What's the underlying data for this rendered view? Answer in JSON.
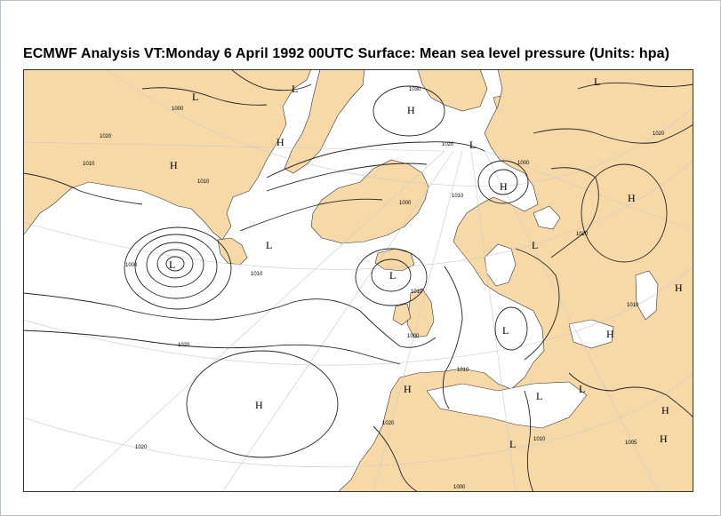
{
  "title": "ECMWF  Analysis VT:Monday 6 April 1992 00UTC Surface: Mean sea level pressure (Units: hpa)",
  "colors": {
    "land": "#f7d9a8",
    "sea": "#ffffff",
    "isobar": "#222222",
    "graticule": "#c8c8c8",
    "frame": "#b9bfd0",
    "tick_label": "#d8d060"
  },
  "pressure_centers": [
    {
      "type": "L",
      "label": "L"
    },
    {
      "type": "L",
      "label": "L"
    },
    {
      "type": "H",
      "label": "H"
    },
    {
      "type": "L",
      "label": "L"
    },
    {
      "type": "H",
      "label": "H"
    },
    {
      "type": "H",
      "label": "H"
    },
    {
      "type": "L",
      "label": "L"
    },
    {
      "type": "H",
      "label": "H"
    },
    {
      "type": "H",
      "label": "H"
    },
    {
      "type": "L",
      "label": "L"
    },
    {
      "type": "H",
      "label": "H"
    },
    {
      "type": "L",
      "label": "L"
    },
    {
      "type": "L",
      "label": "L"
    },
    {
      "type": "H",
      "label": "H"
    },
    {
      "type": "H",
      "label": "H"
    },
    {
      "type": "H",
      "label": "H"
    },
    {
      "type": "L",
      "label": "L"
    },
    {
      "type": "L",
      "label": "L"
    },
    {
      "type": "L",
      "label": "L"
    },
    {
      "type": "H",
      "label": "H"
    },
    {
      "type": "H",
      "label": "H"
    },
    {
      "type": "L",
      "label": "L"
    },
    {
      "type": "L",
      "label": "L"
    }
  ],
  "isobar_labels": [
    {
      "value": "1000"
    },
    {
      "value": "1020"
    },
    {
      "value": "1010"
    },
    {
      "value": "1030"
    },
    {
      "value": "1020"
    },
    {
      "value": "1010"
    },
    {
      "value": "1010"
    },
    {
      "value": "1000"
    },
    {
      "value": "1020"
    },
    {
      "value": "1010"
    },
    {
      "value": "1020"
    },
    {
      "value": "1000"
    },
    {
      "value": "1000"
    },
    {
      "value": "1020"
    },
    {
      "value": "1010"
    },
    {
      "value": "1000"
    },
    {
      "value": "1010"
    },
    {
      "value": "1010"
    },
    {
      "value": "1020"
    },
    {
      "value": "1020"
    },
    {
      "value": "1010"
    },
    {
      "value": "1000"
    },
    {
      "value": "1005"
    }
  ]
}
